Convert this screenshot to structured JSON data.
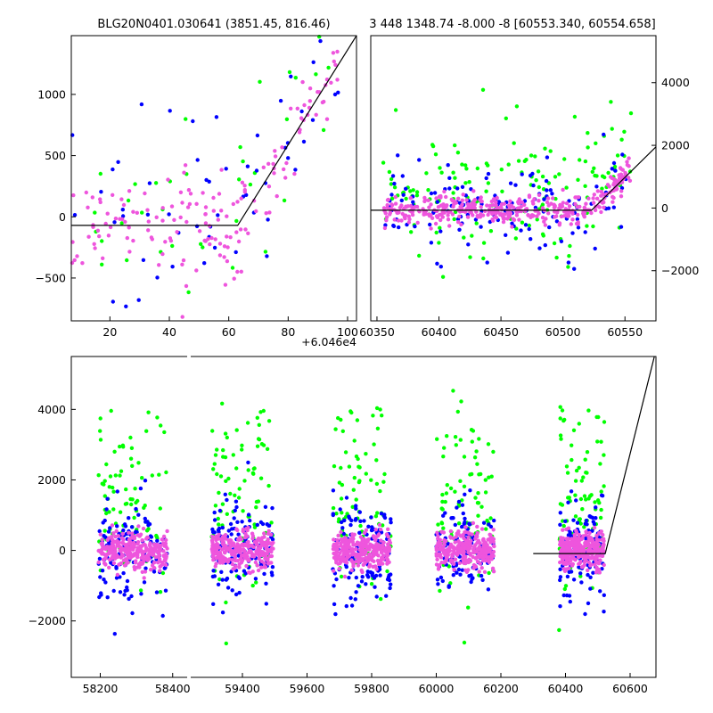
{
  "colors": {
    "green": "#00ff00",
    "blue": "#0000ff",
    "magenta": "#ee55dd",
    "line": "#000000",
    "axes": "#000000",
    "background": "#ffffff"
  },
  "chart_data": [
    {
      "id": "top-left",
      "type": "scatter",
      "title": "BLG20N0401.030641 (3851.45, 816.46)",
      "xlim": [
        7,
        103
      ],
      "ylim": [
        -850,
        1480
      ],
      "x_offset_label": "+6.046e4",
      "x_ticks": [
        20,
        40,
        60,
        80,
        100
      ],
      "y_ticks": [
        -500,
        0,
        500,
        1000
      ],
      "y_tick_side": "left",
      "model_line": [
        [
          7,
          -70
        ],
        [
          63,
          -70
        ],
        [
          103,
          1480
        ]
      ],
      "series_density": {
        "green": 40,
        "blue": 55,
        "magenta": 160
      },
      "y_spread_note": "majority between -500 and 1000, rising after x=65"
    },
    {
      "id": "top-right",
      "type": "scatter",
      "title": "3 448 1348.74 -8.000 -8 [60553.340, 60554.658]",
      "xlim": [
        60345,
        60575
      ],
      "ylim": [
        -3600,
        5500
      ],
      "x_ticks": [
        60350,
        60400,
        60450,
        60500,
        60550
      ],
      "y_ticks": [
        -2000,
        0,
        2000,
        4000
      ],
      "y_tick_side": "right",
      "model_line": [
        [
          60345,
          -70
        ],
        [
          60523,
          -70
        ],
        [
          60575,
          1950
        ]
      ],
      "series_density": {
        "green": 160,
        "blue": 150,
        "magenta": 400
      }
    },
    {
      "id": "bottom",
      "type": "scatter",
      "title": "",
      "broken_axis": true,
      "ylim": [
        -3600,
        5500
      ],
      "y_ticks": [
        -2000,
        0,
        2000,
        4000
      ],
      "y_tick_side": "left",
      "segments": [
        {
          "xlim": [
            58120,
            58440
          ],
          "x_ticks": [
            58200,
            58400
          ],
          "center": 58290,
          "half_width": 95
        },
        {
          "xlim": [
            59240,
            60680
          ],
          "x_ticks": [
            59400,
            59600,
            59800,
            60000,
            60200,
            60400,
            60600
          ],
          "clusters": [
            [
              59400,
              95
            ],
            [
              59770,
              90
            ],
            [
              60090,
              90
            ],
            [
              60450,
              70
            ]
          ]
        }
      ],
      "model_line": [
        [
          60300,
          -90
        ],
        [
          60523,
          -90
        ],
        [
          60675,
          5500
        ]
      ],
      "series_density": {
        "green": 430,
        "blue": 650,
        "magenta": 1400
      }
    }
  ]
}
